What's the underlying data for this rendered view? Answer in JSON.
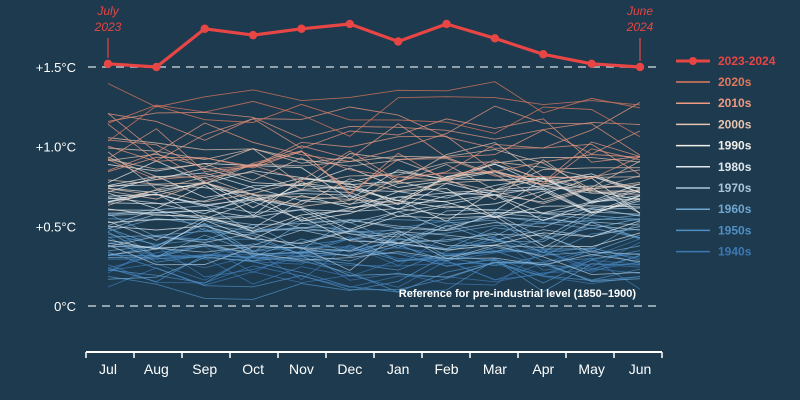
{
  "chart_data": {
    "type": "line",
    "categories": [
      "Jul",
      "Aug",
      "Sep",
      "Oct",
      "Nov",
      "Dec",
      "Jan",
      "Feb",
      "Mar",
      "Apr",
      "May",
      "Jun"
    ],
    "y_unit": "°C",
    "ylim": [
      -0.3,
      1.9
    ],
    "y_ticks": [
      {
        "value": 0,
        "label": "0°C"
      },
      {
        "value": 0.5,
        "label": "+0.5°C"
      },
      {
        "value": 1.0,
        "label": "+1.0°C"
      },
      {
        "value": 1.5,
        "label": "+1.5°C"
      }
    ],
    "grid": false,
    "legend_position": "right",
    "reference_lines": [
      {
        "value": 0,
        "label": "Reference for pre-industrial level (1850–1900)",
        "style": "dashed"
      },
      {
        "value": 1.5,
        "label": "",
        "style": "dashed"
      }
    ],
    "highlight_series": {
      "name": "2023-2024",
      "color": "#e84545",
      "values": [
        1.52,
        1.5,
        1.74,
        1.7,
        1.74,
        1.77,
        1.66,
        1.77,
        1.68,
        1.58,
        1.52,
        1.5
      ]
    },
    "annotations": [
      {
        "text_lines": [
          "July",
          "2023"
        ],
        "at": "Jul"
      },
      {
        "text_lines": [
          "June",
          "2024"
        ],
        "at": "Jun"
      }
    ],
    "decade_series": [
      {
        "decade": "2020s",
        "color": "#e07a5f",
        "center": 1.22,
        "spread": 0.14,
        "count": 3
      },
      {
        "decade": "2010s",
        "color": "#ee9a82",
        "center": 1.02,
        "spread": 0.16,
        "count": 10
      },
      {
        "decade": "2000s",
        "color": "#e7c4b2",
        "center": 0.84,
        "spread": 0.14,
        "count": 10
      },
      {
        "decade": "1990s",
        "color": "#f2efe9",
        "center": 0.68,
        "spread": 0.13,
        "count": 10
      },
      {
        "decade": "1980s",
        "color": "#dfe7ee",
        "center": 0.58,
        "spread": 0.12,
        "count": 10
      },
      {
        "decade": "1970s",
        "color": "#a9c6dc",
        "center": 0.44,
        "spread": 0.12,
        "count": 10
      },
      {
        "decade": "1960s",
        "color": "#6fa6d0",
        "center": 0.36,
        "spread": 0.12,
        "count": 10
      },
      {
        "decade": "1950s",
        "color": "#4f8fc4",
        "center": 0.3,
        "spread": 0.12,
        "count": 10
      },
      {
        "decade": "1940s",
        "color": "#3d78b3",
        "center": 0.3,
        "spread": 0.12,
        "count": 10
      }
    ]
  },
  "palette": {
    "background": "#1d3a4e",
    "axis": "#ffffff",
    "reference_line": "#b8c4cc"
  }
}
